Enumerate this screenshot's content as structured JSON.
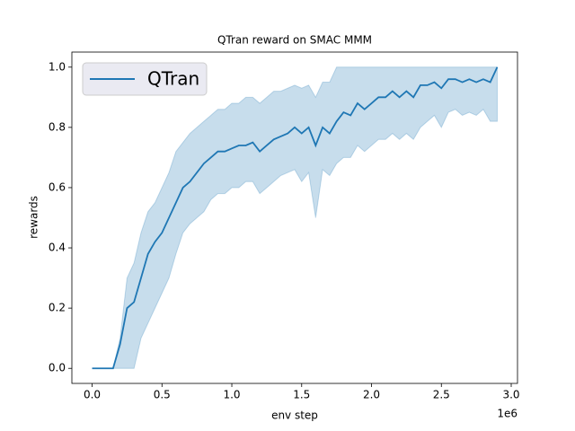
{
  "chart_data": {
    "type": "line",
    "title": "QTran reward on SMAC MMM",
    "xlabel": "env step",
    "ylabel": "rewards",
    "x_offset_label": "1e6",
    "x": [
      0,
      50000,
      100000,
      150000,
      200000,
      250000,
      300000,
      350000,
      400000,
      450000,
      500000,
      550000,
      600000,
      650000,
      700000,
      750000,
      800000,
      850000,
      900000,
      950000,
      1000000,
      1050000,
      1100000,
      1150000,
      1200000,
      1250000,
      1300000,
      1350000,
      1400000,
      1450000,
      1500000,
      1550000,
      1600000,
      1650000,
      1700000,
      1750000,
      1800000,
      1850000,
      1900000,
      1950000,
      2000000,
      2050000,
      2100000,
      2150000,
      2200000,
      2250000,
      2300000,
      2350000,
      2400000,
      2450000,
      2500000,
      2550000,
      2600000,
      2650000,
      2700000,
      2750000,
      2800000,
      2850000,
      2900000
    ],
    "series": [
      {
        "name": "QTran",
        "color": "#1f77b4",
        "values": [
          0,
          0,
          0,
          0,
          0.08,
          0.2,
          0.22,
          0.3,
          0.38,
          0.42,
          0.45,
          0.5,
          0.55,
          0.6,
          0.62,
          0.65,
          0.68,
          0.7,
          0.72,
          0.72,
          0.73,
          0.74,
          0.74,
          0.75,
          0.72,
          0.74,
          0.76,
          0.77,
          0.78,
          0.8,
          0.78,
          0.8,
          0.74,
          0.8,
          0.78,
          0.82,
          0.85,
          0.84,
          0.88,
          0.86,
          0.88,
          0.9,
          0.9,
          0.92,
          0.9,
          0.92,
          0.9,
          0.94,
          0.94,
          0.95,
          0.93,
          0.96,
          0.96,
          0.95,
          0.96,
          0.95,
          0.96,
          0.95,
          1.0
        ],
        "upper": [
          0,
          0,
          0,
          0,
          0.1,
          0.3,
          0.35,
          0.45,
          0.52,
          0.55,
          0.6,
          0.65,
          0.72,
          0.75,
          0.78,
          0.8,
          0.82,
          0.84,
          0.86,
          0.86,
          0.88,
          0.88,
          0.9,
          0.9,
          0.88,
          0.9,
          0.92,
          0.92,
          0.93,
          0.94,
          0.93,
          0.94,
          0.9,
          0.95,
          0.95,
          1,
          1,
          1,
          1,
          1,
          1,
          1,
          1,
          1,
          1,
          1,
          1,
          1,
          1,
          1,
          1,
          1,
          1,
          1,
          1,
          1,
          1,
          1,
          1
        ],
        "lower": [
          0,
          0,
          0,
          0,
          0,
          0,
          0,
          0.1,
          0.15,
          0.2,
          0.25,
          0.3,
          0.38,
          0.45,
          0.48,
          0.5,
          0.52,
          0.56,
          0.58,
          0.58,
          0.6,
          0.6,
          0.62,
          0.62,
          0.58,
          0.6,
          0.62,
          0.64,
          0.65,
          0.66,
          0.62,
          0.65,
          0.5,
          0.66,
          0.64,
          0.68,
          0.7,
          0.7,
          0.74,
          0.72,
          0.74,
          0.76,
          0.76,
          0.78,
          0.76,
          0.78,
          0.76,
          0.8,
          0.82,
          0.84,
          0.8,
          0.85,
          0.86,
          0.84,
          0.85,
          0.84,
          0.86,
          0.82,
          0.82
        ]
      }
    ],
    "xlim": [
      -145000,
      3045000
    ],
    "ylim": [
      -0.05,
      1.05
    ],
    "xticks": [
      {
        "value": 0,
        "label": "0.0"
      },
      {
        "value": 500000,
        "label": "0.5"
      },
      {
        "value": 1000000,
        "label": "1.0"
      },
      {
        "value": 1500000,
        "label": "1.5"
      },
      {
        "value": 2000000,
        "label": "2.0"
      },
      {
        "value": 2500000,
        "label": "2.5"
      },
      {
        "value": 3000000,
        "label": "3.0"
      }
    ],
    "yticks": [
      {
        "value": 0,
        "label": "0.0"
      },
      0.2,
      0.4,
      0.6,
      0.8,
      {
        "value": 1,
        "label": "1.0"
      }
    ],
    "legend": "upper left",
    "grid": false
  }
}
